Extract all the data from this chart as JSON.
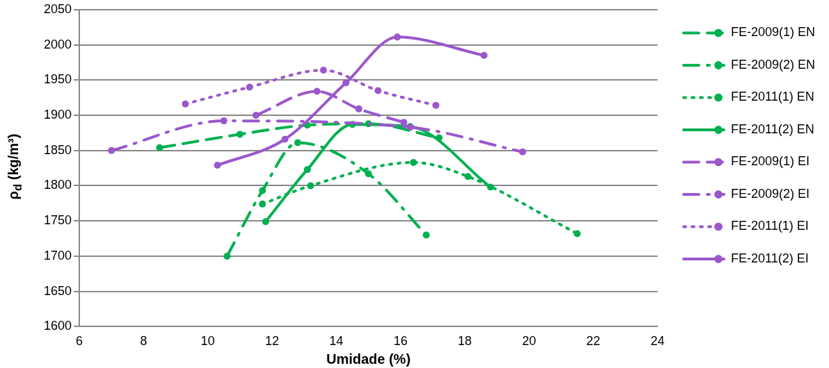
{
  "chart_data": {
    "type": "line",
    "xlabel": "Umidade (%)",
    "ylabel": "ρ$_{d}$ (kg/m³)",
    "xlim": [
      6,
      24
    ],
    "xticks": [
      6,
      8,
      10,
      12,
      14,
      16,
      18,
      20,
      22,
      24
    ],
    "ylim": [
      1600,
      2050
    ],
    "yticks": [
      1600,
      1650,
      1700,
      1750,
      1800,
      1850,
      1900,
      1950,
      2000,
      2050
    ],
    "grid": "y",
    "legend": "right",
    "marker": "circle",
    "series": [
      {
        "name": "FE-2009(1) EN",
        "color": "#00b050",
        "line_style": "dashed",
        "x": [
          8.5,
          11,
          13.1,
          15,
          17.2
        ],
        "values": [
          1854,
          1873,
          1886,
          1888,
          1868
        ]
      },
      {
        "name": "FE-2009(2) EN",
        "color": "#00b050",
        "line_style": "dashdot",
        "x": [
          10.6,
          11.7,
          12.8,
          15,
          16.8
        ],
        "values": [
          1700,
          1793,
          1861,
          1817,
          1730
        ]
      },
      {
        "name": "FE-2011(1) EN",
        "color": "#00b050",
        "line_style": "dotted",
        "x": [
          11.7,
          13.2,
          16.4,
          18.1,
          21.5
        ],
        "values": [
          1774,
          1800,
          1833,
          1813,
          1732
        ]
      },
      {
        "name": "FE-2011(2) EN",
        "color": "#00b050",
        "line_style": "solid",
        "x": [
          11.8,
          13.1,
          14.5,
          16.3,
          18.8
        ],
        "values": [
          1749,
          1823,
          1887,
          1884,
          1798
        ]
      },
      {
        "name": "FE-2009(1) EI",
        "color": "#9b57cc",
        "line_style": "dashed",
        "x": [
          11.5,
          13.4,
          14.7,
          16.1
        ],
        "values": [
          1900,
          1934,
          1909,
          1890
        ]
      },
      {
        "name": "FE-2009(2) EI",
        "color": "#9b57cc",
        "line_style": "dashdot",
        "x": [
          7,
          10.5,
          16.3,
          19.8
        ],
        "values": [
          1850,
          1892,
          1883,
          1848
        ]
      },
      {
        "name": "FE-2011(1) EI",
        "color": "#9b57cc",
        "line_style": "dotted",
        "x": [
          9.3,
          11.3,
          13.6,
          15.3,
          17.1
        ],
        "values": [
          1916,
          1940,
          1964,
          1935,
          1914
        ]
      },
      {
        "name": "FE-2011(2) EI",
        "color": "#9b57cc",
        "line_style": "solid",
        "x": [
          10.3,
          12.4,
          14.3,
          15.9,
          18.6
        ],
        "values": [
          1829,
          1866,
          1946,
          2011,
          1985
        ]
      }
    ]
  }
}
